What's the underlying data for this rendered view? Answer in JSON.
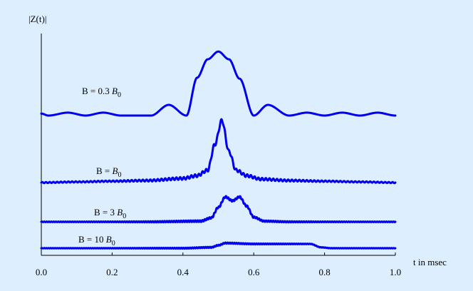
{
  "chart_data": {
    "type": "line",
    "title": "",
    "ylabel": "|Z(t)|",
    "xlabel": "t in msec",
    "xlim": [
      0.0,
      1.0
    ],
    "xticks": [
      "0.0",
      "0.2",
      "0.4",
      "0.6",
      "0.8",
      "1.0"
    ],
    "grid": false,
    "colors": {
      "background": "#ddeeff",
      "line": "#0000ee"
    },
    "series": [
      {
        "label_prefix": "B = 0.3 ",
        "label_sym": "B",
        "label_sub": "0",
        "description_points": {
          "x": [
            0.0,
            0.02,
            0.075,
            0.125,
            0.175,
            0.225,
            0.31,
            0.36,
            0.41,
            0.44,
            0.47,
            0.5,
            0.53,
            0.56,
            0.6,
            0.64,
            0.7,
            0.75,
            0.8,
            0.85,
            0.9,
            0.95,
            1.0
          ],
          "y": [
            0.02,
            0.0,
            0.03,
            0.0,
            0.03,
            0.0,
            0.0,
            0.11,
            0.0,
            0.39,
            0.58,
            0.66,
            0.58,
            0.38,
            0.0,
            0.11,
            0.0,
            0.03,
            0.0,
            0.03,
            0.0,
            0.03,
            0.0
          ]
        }
      },
      {
        "label_prefix": "B = ",
        "label_sym": "B",
        "label_sub": "0",
        "description_points": {
          "x": [
            0.0,
            0.1,
            0.2,
            0.3,
            0.4,
            0.44,
            0.47,
            0.49,
            0.51,
            0.53,
            0.55,
            0.58,
            0.62,
            0.7,
            0.8,
            0.9,
            1.0
          ],
          "y": [
            0.0,
            0.01,
            0.02,
            0.03,
            0.06,
            0.1,
            0.18,
            0.55,
            0.9,
            0.45,
            0.18,
            0.1,
            0.05,
            0.03,
            0.02,
            0.01,
            0.0
          ]
        }
      },
      {
        "label_prefix": "B = 3 ",
        "label_sym": "B",
        "label_sub": "0",
        "description_points": {
          "x": [
            0.0,
            0.3,
            0.45,
            0.48,
            0.5,
            0.52,
            0.54,
            0.56,
            0.58,
            0.6,
            0.63,
            0.7,
            1.0
          ],
          "y": [
            0.0,
            0.0,
            0.01,
            0.06,
            0.22,
            0.38,
            0.32,
            0.38,
            0.24,
            0.07,
            0.01,
            0.0,
            0.0
          ]
        }
      },
      {
        "label_prefix": "B = 10 ",
        "label_sym": "B",
        "label_sub": "0",
        "description_points": {
          "x": [
            0.0,
            0.4,
            0.48,
            0.5,
            0.52,
            0.6,
            0.7,
            0.76,
            0.79,
            0.82,
            1.0
          ],
          "y": [
            0.0,
            0.0,
            0.03,
            0.1,
            0.18,
            0.15,
            0.15,
            0.15,
            0.03,
            0.0,
            0.0
          ]
        }
      }
    ]
  }
}
